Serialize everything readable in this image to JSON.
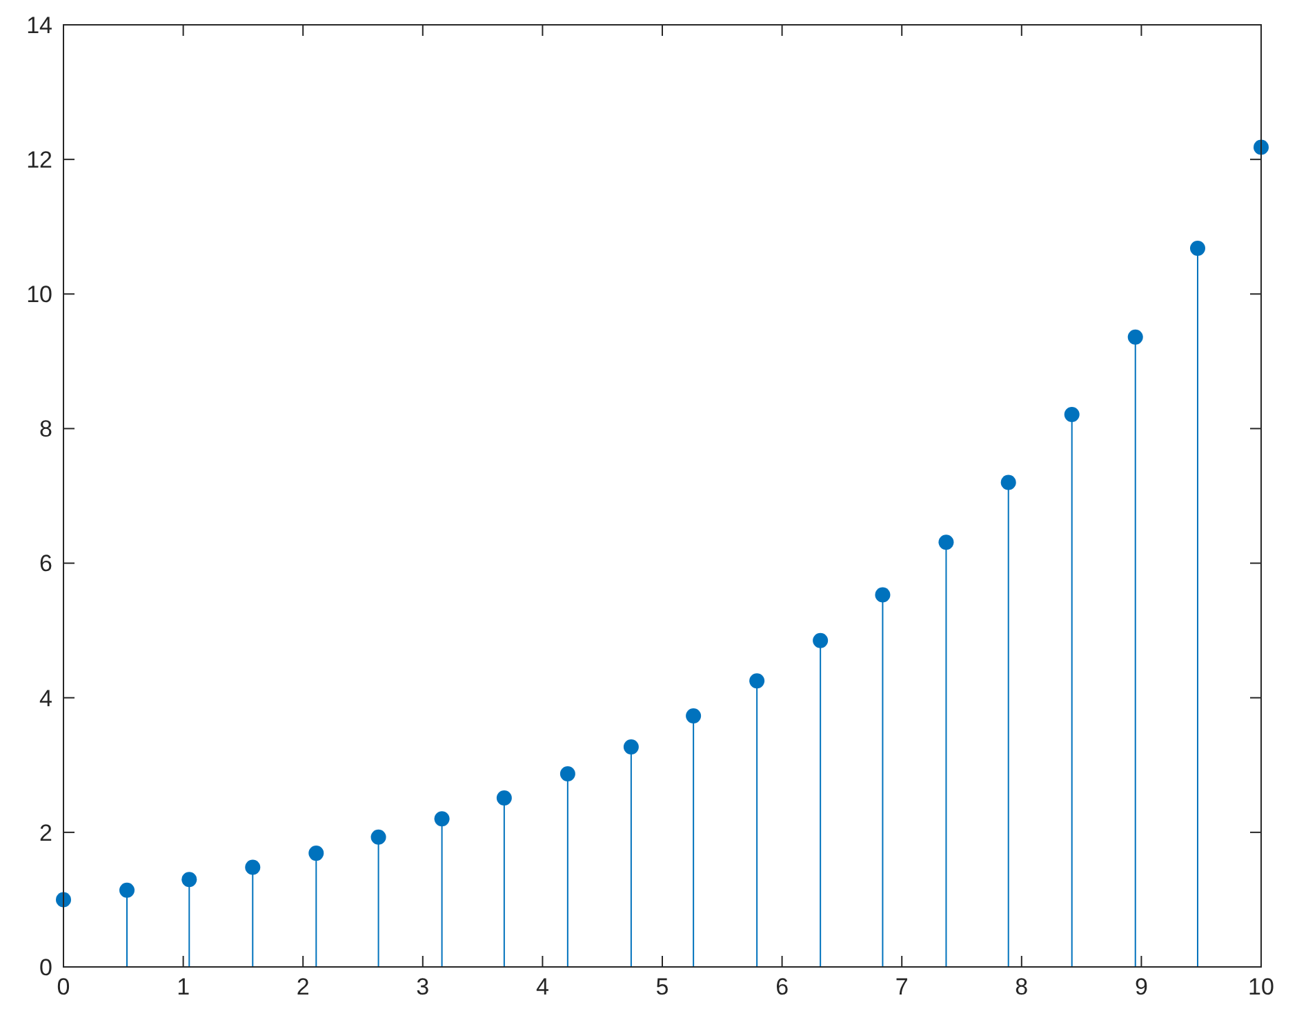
{
  "chart_data": {
    "type": "lollipop",
    "marker": "circle",
    "color": "#0072bd",
    "x": [
      0,
      0.53,
      1.05,
      1.58,
      2.11,
      2.63,
      3.16,
      3.68,
      4.21,
      4.74,
      5.26,
      5.79,
      6.32,
      6.84,
      7.37,
      7.89,
      8.42,
      8.95,
      9.47,
      10
    ],
    "values": [
      1.0,
      1.14,
      1.3,
      1.48,
      1.69,
      1.93,
      2.2,
      2.51,
      2.87,
      3.27,
      3.73,
      4.25,
      4.85,
      5.53,
      6.31,
      7.2,
      8.21,
      9.36,
      10.68,
      12.18
    ],
    "xlim": [
      0,
      10
    ],
    "xticks": [
      0,
      1,
      2,
      3,
      4,
      5,
      6,
      7,
      8,
      9,
      10
    ],
    "ylim": [
      0,
      14
    ],
    "yticks": [
      0,
      2,
      4,
      6,
      8,
      10,
      12,
      14
    ],
    "grid": false
  }
}
